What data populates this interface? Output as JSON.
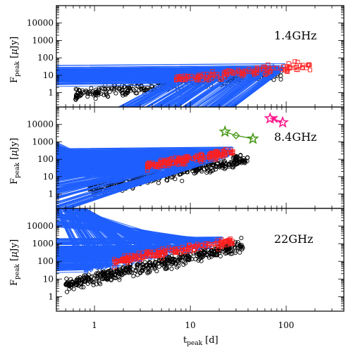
{
  "chart_data": {
    "type": "scatter",
    "x_scale": "log",
    "y_scale": "log",
    "xlim": [
      0.4,
      400
    ],
    "ylim": [
      0.15,
      100000
    ],
    "xlabel": {
      "main": "t",
      "sub": "peak",
      "unit": " [d]"
    },
    "ylabel": {
      "main": "F",
      "sub": "peak",
      "unit": " [",
      "unit_sym": "μ",
      "unit_rest": "Jy]"
    },
    "x_tick_labels": [
      {
        "value": 1,
        "label": "1"
      },
      {
        "value": 10,
        "label": "10"
      },
      {
        "value": 100,
        "label": "100"
      }
    ],
    "y_tick_labels": [
      {
        "value": 1,
        "label": "1"
      },
      {
        "value": 10,
        "label": "10"
      },
      {
        "value": 100,
        "label": "100"
      },
      {
        "value": 1000,
        "label": "1000"
      },
      {
        "value": 10000,
        "label": "10000"
      }
    ],
    "series_style": [
      {
        "marker": "circle",
        "color": "#000000"
      },
      {
        "marker": "triangle",
        "color": "#1f5fff"
      },
      {
        "marker": "square",
        "color": "#ff2020"
      }
    ],
    "panels": [
      {
        "label": "1.4GHz",
        "clouds": [
          {
            "series": 0,
            "n": 330,
            "x_log_range": [
              -0.2,
              1.95
            ],
            "y_log_at_xmin": -0.1,
            "y_log_slope": 0.55,
            "y_log_scatter": 0.45
          },
          {
            "series": 1,
            "n": 190,
            "x_log_range": [
              0.75,
              2.0
            ],
            "y_log_at_xmin": 0.55,
            "y_log_slope": 0.6,
            "y_log_scatter": 0.35
          },
          {
            "series": 2,
            "n": 130,
            "x_log_range": [
              0.85,
              2.25
            ],
            "y_log_at_xmin": 0.8,
            "y_log_slope": 0.55,
            "y_log_scatter": 0.3
          }
        ]
      },
      {
        "label": "8.4GHz",
        "clouds": [
          {
            "series": 0,
            "n": 420,
            "x_log_range": [
              -0.05,
              1.6
            ],
            "y_log_at_xmin": 0.3,
            "y_log_slope": 1.05,
            "y_log_scatter": 0.45
          },
          {
            "series": 1,
            "n": 260,
            "x_log_range": [
              0.2,
              1.45
            ],
            "y_log_at_xmin": 1.1,
            "y_log_slope": 1.05,
            "y_log_scatter": 0.35
          },
          {
            "series": 2,
            "n": 170,
            "x_log_range": [
              0.55,
              1.45
            ],
            "y_log_at_xmin": 1.6,
            "y_log_slope": 0.95,
            "y_log_scatter": 0.3
          }
        ],
        "highlight_tracks": [
          {
            "color": "#4a9a1a",
            "points": [
              {
                "x": 23,
                "y": 3800,
                "marker": "star"
              },
              {
                "x": 30,
                "y": 2300,
                "marker": "diamond"
              },
              {
                "x": 45,
                "y": 1500,
                "marker": "star"
              }
            ]
          },
          {
            "color": "#ff1a8c",
            "points": [
              {
                "x": 68,
                "y": 22000,
                "marker": "star"
              },
              {
                "x": 75,
                "y": 20000,
                "marker": "x"
              },
              {
                "x": 92,
                "y": 13000,
                "marker": "star"
              }
            ]
          }
        ]
      },
      {
        "label": "22GHz",
        "clouds": [
          {
            "series": 0,
            "n": 480,
            "x_log_range": [
              -0.3,
              1.55
            ],
            "y_log_at_xmin": 0.7,
            "y_log_slope": 1.2,
            "y_log_scatter": 0.45
          },
          {
            "series": 1,
            "n": 240,
            "x_log_range": [
              -0.1,
              1.35
            ],
            "y_log_at_xmin": 1.5,
            "y_log_slope": 1.15,
            "y_log_scatter": 0.35
          },
          {
            "series": 2,
            "n": 180,
            "x_log_range": [
              0.2,
              1.45
            ],
            "y_log_at_xmin": 2.0,
            "y_log_slope": 0.95,
            "y_log_scatter": 0.3
          }
        ]
      }
    ]
  }
}
